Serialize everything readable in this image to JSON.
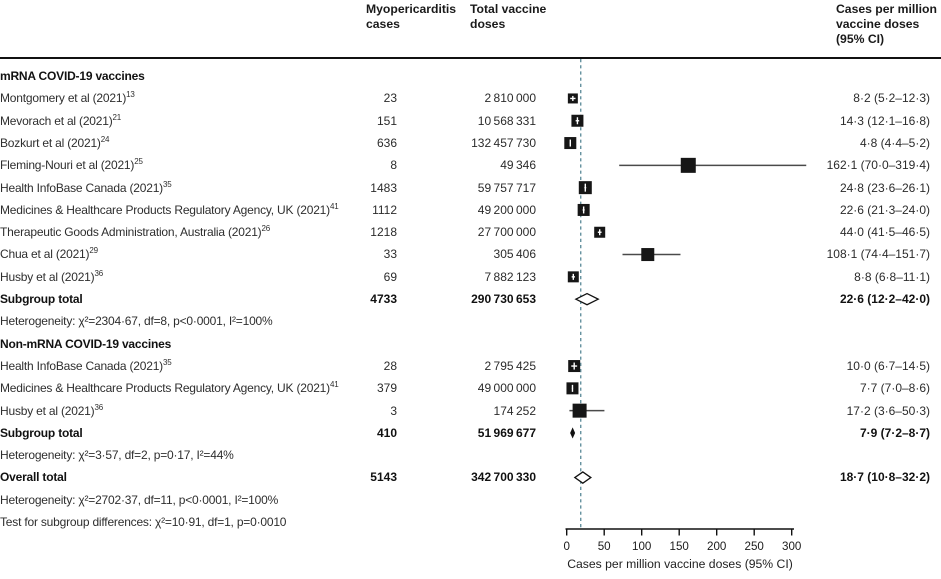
{
  "figure": {
    "col_cases_header": "Myopericarditis\ncases",
    "col_doses_header": "Total vaccine\ndoses",
    "col_estimate_header": "Cases per million\nvaccine doses\n(95% CI)"
  },
  "chart_data": {
    "type": "forest",
    "xlabel": "Cases per million vaccine doses (95% CI)",
    "xlim": [
      0,
      300
    ],
    "xticks": [
      0,
      50,
      100,
      150,
      200,
      250,
      300
    ],
    "reference_line": 18.7,
    "colors": {
      "reference_dash": "#64919e",
      "ci_line": "#4a4a4a",
      "marker": "#161616"
    },
    "rows": [
      {
        "type": "group",
        "label": "mRNA COVID-19 vaccines"
      },
      {
        "type": "study",
        "label": "Montgomery et al (2021)",
        "ref": "13",
        "cases": "23",
        "doses": "2 810 000",
        "estimate": "8·2 (5·2–12·3)",
        "est": 8.2,
        "lo": 5.2,
        "hi": 12.3,
        "size": 10
      },
      {
        "type": "study",
        "label": "Mevorach et al (2021)",
        "ref": "21",
        "cases": "151",
        "doses": "10 568 331",
        "estimate": "14·3 (12·1–16·8)",
        "est": 14.3,
        "lo": 12.1,
        "hi": 16.8,
        "size": 12
      },
      {
        "type": "study",
        "label": "Bozkurt et al (2021)",
        "ref": "24",
        "cases": "636",
        "doses": "132 457 730",
        "estimate": "4·8 (4·4–5·2)",
        "est": 4.8,
        "lo": 4.4,
        "hi": 5.2,
        "size": 12
      },
      {
        "type": "study",
        "label": "Fleming-Nouri et al (2021)",
        "ref": "25",
        "cases": "8",
        "doses": "49 346",
        "estimate": "162·1 (70·0–319·4)",
        "est": 162.1,
        "lo": 70.0,
        "hi": 319.4,
        "size": 15
      },
      {
        "type": "study",
        "label": "Health InfoBase Canada (2021)",
        "ref": "35",
        "cases": "1483",
        "doses": "59 757 717",
        "estimate": "24·8 (23·6–26·1)",
        "est": 24.8,
        "lo": 23.6,
        "hi": 26.1,
        "size": 13
      },
      {
        "type": "study",
        "label": "Medicines & Healthcare Products Regulatory Agency, UK (2021)",
        "ref": "41",
        "cases": "1112",
        "doses": "49 200 000",
        "estimate": "22·6 (21·3–24·0)",
        "est": 22.6,
        "lo": 21.3,
        "hi": 24.0,
        "size": 12
      },
      {
        "type": "study",
        "label": "Therapeutic Goods Administration, Australia (2021)",
        "ref": "26",
        "cases": "1218",
        "doses": "27 700 000",
        "estimate": "44·0 (41·5–46·5)",
        "est": 44.0,
        "lo": 41.5,
        "hi": 46.5,
        "size": 11
      },
      {
        "type": "study",
        "label": "Chua et al (2021)",
        "ref": "29",
        "cases": "33",
        "doses": "305 406",
        "estimate": "108·1 (74·4–151·7)",
        "est": 108.1,
        "lo": 74.4,
        "hi": 151.7,
        "size": 13
      },
      {
        "type": "study",
        "label": "Husby et al (2021)",
        "ref": "36",
        "cases": "69",
        "doses": "7 882 123",
        "estimate": "8·8 (6·8–11·1)",
        "est": 8.8,
        "lo": 6.8,
        "hi": 11.1,
        "size": 11
      },
      {
        "type": "subtotal",
        "label": "Subgroup total",
        "cases": "4733",
        "doses": "290 730 653",
        "estimate": "22·6 (12·2–42·0)",
        "est": 22.6,
        "lo": 12.2,
        "hi": 42.0,
        "diamond": "open"
      },
      {
        "type": "het",
        "label": "Heterogeneity: χ²=2304·67, df=8, p<0·0001, I²=100%"
      },
      {
        "type": "group",
        "label": "Non-mRNA COVID-19 vaccines"
      },
      {
        "type": "study",
        "label": "Health InfoBase Canada (2021)",
        "ref": "35",
        "cases": "28",
        "doses": "2 795 425",
        "estimate": "10·0 (6·7–14·5)",
        "est": 10.0,
        "lo": 6.7,
        "hi": 14.5,
        "size": 12
      },
      {
        "type": "study",
        "label": "Medicines & Healthcare Products Regulatory Agency, UK (2021)",
        "ref": "41",
        "cases": "379",
        "doses": "49 000 000",
        "estimate": "7·7 (7·0–8·6)",
        "est": 7.7,
        "lo": 7.0,
        "hi": 8.6,
        "size": 12
      },
      {
        "type": "study",
        "label": "Husby et al (2021)",
        "ref": "36",
        "cases": "3",
        "doses": "174 252",
        "estimate": "17·2 (3·6–50·3)",
        "est": 17.2,
        "lo": 3.6,
        "hi": 50.3,
        "size": 14
      },
      {
        "type": "subtotal",
        "label": "Subgroup total",
        "cases": "410",
        "doses": "51 969 677",
        "estimate": "7·9 (7·2–8·7)",
        "est": 7.9,
        "lo": 7.2,
        "hi": 8.7,
        "diamond": "filled"
      },
      {
        "type": "het",
        "label": "Heterogeneity: χ²=3·57, df=2, p=0·17, I²=44%"
      },
      {
        "type": "overall",
        "label": "Overall total",
        "cases": "5143",
        "doses": "342 700 330",
        "estimate": "18·7 (10·8–32·2)",
        "est": 18.7,
        "lo": 10.8,
        "hi": 32.2,
        "diamond": "open"
      },
      {
        "type": "het",
        "label": "Heterogeneity: χ²=2702·37, df=11, p<0·0001, I²=100%"
      },
      {
        "type": "test",
        "label": "Test for subgroup differences: χ²=10·91, df=1, p=0·0010"
      }
    ]
  }
}
